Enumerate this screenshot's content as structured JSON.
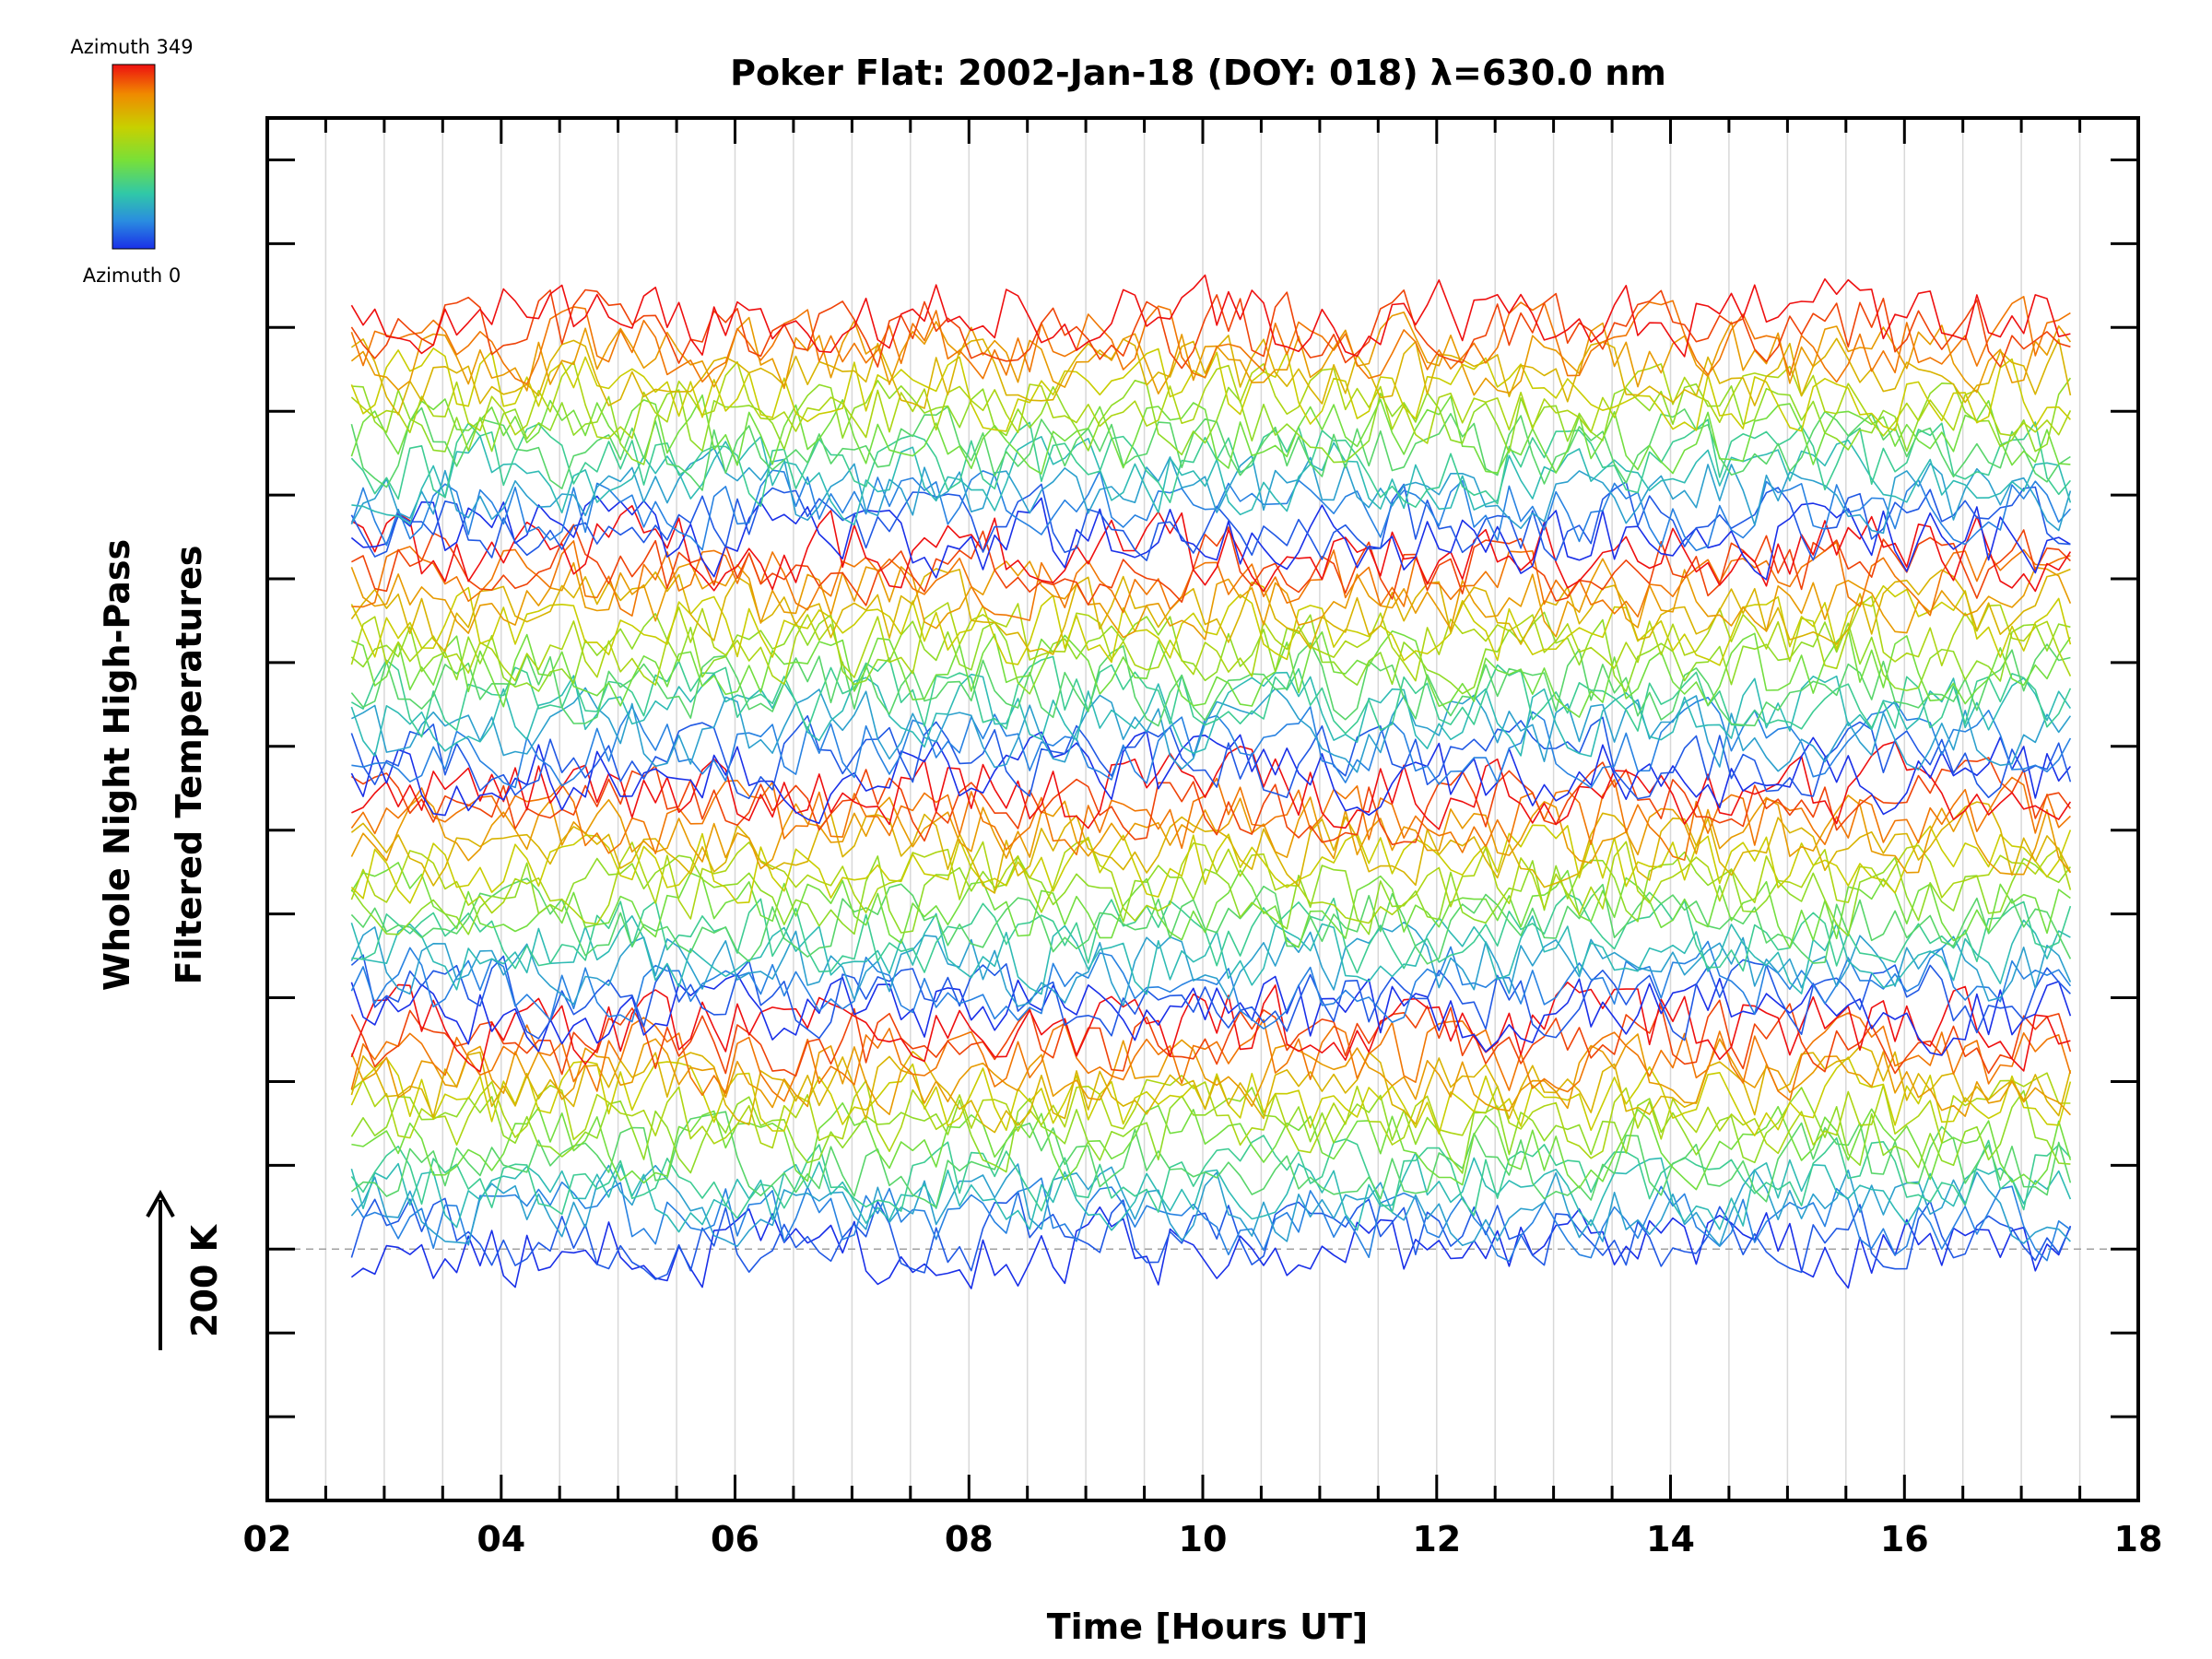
{
  "chart_data": {
    "type": "line",
    "title": "Poker Flat: 2002-Jan-18 (DOY: 018) λ=630.0 nm",
    "xlabel": "Time [Hours UT]",
    "ylabel_line1": "Whole Night High-Pass",
    "ylabel_line2": "Filtered Temperatures",
    "scale_label": "200 K",
    "x_range": [
      2,
      18
    ],
    "x_ticks": [
      "02",
      "04",
      "06",
      "08",
      "10",
      "12",
      "14",
      "16",
      "18"
    ],
    "x_tick_values": [
      2,
      4,
      6,
      8,
      10,
      12,
      14,
      16,
      18
    ],
    "y_range_K": [
      -300,
      1350
    ],
    "y_major_tick_step_K": 100,
    "y_labels_shown": false,
    "grid": "vertical lines every 0.5 h",
    "reference_baseline_K": 0,
    "data_start_hour": 2.72,
    "data_end_hour": 17.45,
    "sample_interval_hour": 0.1,
    "series_count": 64,
    "series_offset_step_K": 17.7,
    "series_azimuth_max_deg": 349,
    "series_offset_order_note": "series are stacked with offset increasing upward; azimuth cycles 0 to 349 four times",
    "series_amplitude_K": 40,
    "colorbar": {
      "label_top": "Azimuth 349",
      "label_bottom": "Azimuth 0",
      "colors": [
        "#ee1010",
        "#f08a00",
        "#c8d000",
        "#78e038",
        "#30c8a8",
        "#2a8ce0",
        "#1a30e8"
      ]
    }
  }
}
